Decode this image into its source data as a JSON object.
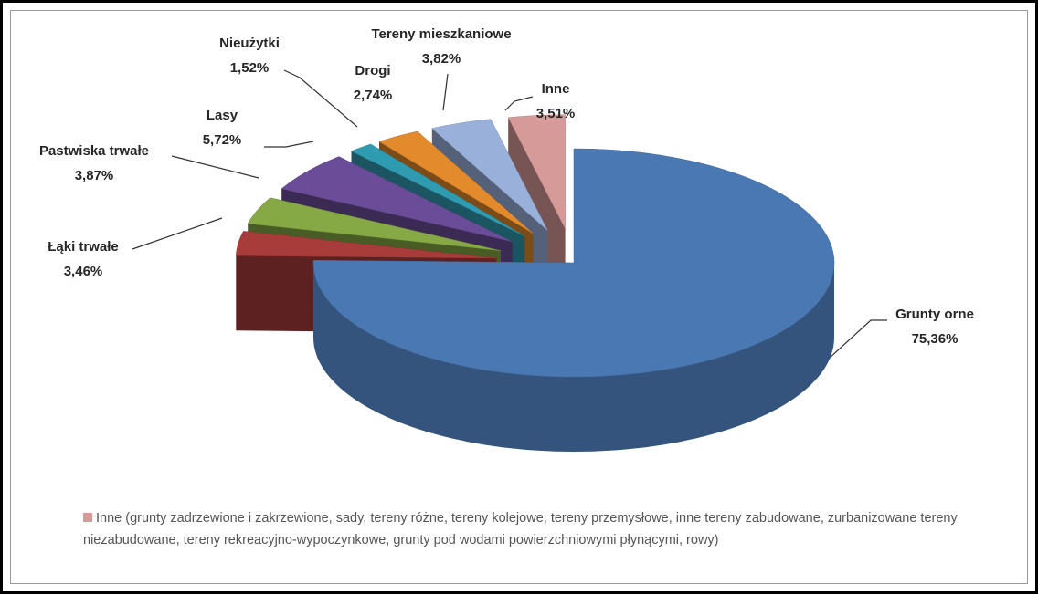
{
  "chart_data": {
    "type": "pie3d",
    "categories": [
      "Grunty orne",
      "Łąki trwałe",
      "Pastwiska trwałe",
      "Lasy",
      "Nieużytki",
      "Drogi",
      "Tereny mieszkaniowe",
      "Inne"
    ],
    "values": [
      75.36,
      3.46,
      3.87,
      5.72,
      1.52,
      2.74,
      3.82,
      3.51
    ],
    "value_labels": [
      "75,36%",
      "3,46%",
      "3,87%",
      "5,72%",
      "1,52%",
      "2,74%",
      "3,82%",
      "3,51%"
    ],
    "colors": [
      "#4a78b2",
      "#a83c3a",
      "#86a845",
      "#6b4c98",
      "#2f9bb0",
      "#e28a2c",
      "#98b0da",
      "#d69a98"
    ],
    "legend": {
      "color": "#d69a98",
      "text": "Inne (grunty zadrzewione i zakrzewione, sady, tereny różne, tereny kolejowe, tereny przemysłowe, inne tereny zabudowane, zurbanizowane tereny niezabudowane, tereny rekreacyjno-wypoczynkowe, grunty pod wodami powierzchniowymi płynącymi,  rowy)"
    }
  }
}
